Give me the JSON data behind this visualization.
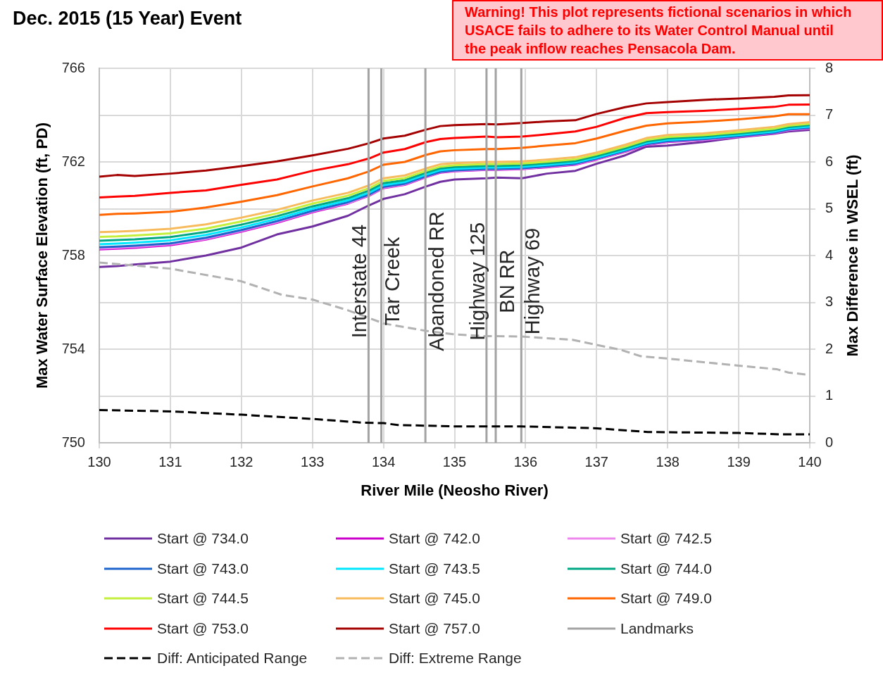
{
  "chart_data": {
    "type": "line",
    "title": "Dec. 2015 (15 Year) Event",
    "xlabel": "River Mile (Neosho River)",
    "ylabel": "Max Water Surface Elevation (ft, PD)",
    "y2label": "Max Difference in WSEL (ft)",
    "x": [
      130,
      130.25,
      130.5,
      131,
      131.5,
      132,
      132.5,
      133,
      133.5,
      133.8,
      134,
      134.3,
      134.6,
      134.8,
      135,
      135.45,
      135.6,
      135.95,
      136.3,
      136.7,
      137,
      137.4,
      137.7,
      138,
      138.5,
      139,
      139.5,
      139.7,
      140
    ],
    "xlim": [
      130,
      140
    ],
    "xticks": [
      130,
      131,
      132,
      133,
      134,
      135,
      136,
      137,
      138,
      139,
      140
    ],
    "ylim": [
      750,
      766
    ],
    "yticks": [
      750,
      754,
      758,
      762,
      766
    ],
    "y2lim": [
      0,
      8
    ],
    "y2ticks": [
      0,
      1,
      2,
      3,
      4,
      5,
      6,
      7,
      8
    ],
    "grid": true,
    "legend": "bottom",
    "marker": "none",
    "series": [
      {
        "name": "Start @ 734.0",
        "color": "#7030a0",
        "values": [
          757.51,
          757.55,
          757.62,
          757.74,
          758.0,
          758.34,
          758.9,
          759.24,
          759.7,
          760.15,
          760.42,
          760.62,
          760.95,
          761.15,
          761.25,
          761.3,
          761.33,
          761.3,
          761.5,
          761.62,
          761.92,
          762.28,
          762.65,
          762.7,
          762.85,
          763.05,
          763.2,
          763.3,
          763.37
        ]
      },
      {
        "name": "Start @ 742.0",
        "color": "#cc00cc",
        "values": [
          758.26,
          758.29,
          758.33,
          758.44,
          758.68,
          759.02,
          759.4,
          759.85,
          760.22,
          760.56,
          760.88,
          761.02,
          761.35,
          761.54,
          761.6,
          761.66,
          761.66,
          761.69,
          761.77,
          761.88,
          762.1,
          762.43,
          762.72,
          762.85,
          762.93,
          763.07,
          763.22,
          763.35,
          763.43
        ]
      },
      {
        "name": "Start @ 742.5",
        "color": "#ee88ee",
        "values": [
          758.3,
          758.33,
          758.37,
          758.48,
          758.71,
          759.05,
          759.43,
          759.88,
          760.24,
          760.58,
          760.9,
          761.04,
          761.37,
          761.56,
          761.62,
          761.68,
          761.68,
          761.71,
          761.79,
          761.9,
          762.12,
          762.45,
          762.74,
          762.87,
          762.94,
          763.08,
          763.23,
          763.36,
          763.44
        ]
      },
      {
        "name": "Start @ 743.0",
        "color": "#1f66cc",
        "values": [
          758.35,
          758.38,
          758.42,
          758.52,
          758.76,
          759.09,
          759.47,
          759.91,
          760.28,
          760.61,
          760.93,
          761.07,
          761.39,
          761.58,
          761.64,
          761.7,
          761.7,
          761.73,
          761.81,
          761.92,
          762.14,
          762.47,
          762.76,
          762.89,
          762.97,
          763.1,
          763.25,
          763.38,
          763.46
        ]
      },
      {
        "name": "Start @ 743.5",
        "color": "#00e8ff",
        "values": [
          758.48,
          758.51,
          758.55,
          758.65,
          758.88,
          759.2,
          759.57,
          760.0,
          760.36,
          760.69,
          761.01,
          761.14,
          761.46,
          761.65,
          761.71,
          761.76,
          761.76,
          761.79,
          761.87,
          761.98,
          762.19,
          762.52,
          762.81,
          762.94,
          763.02,
          763.15,
          763.3,
          763.43,
          763.51
        ]
      },
      {
        "name": "Start @ 744.0",
        "color": "#00a884",
        "values": [
          758.63,
          758.66,
          758.69,
          758.79,
          759.01,
          759.32,
          759.68,
          760.1,
          760.45,
          760.78,
          761.09,
          761.22,
          761.54,
          761.72,
          761.78,
          761.83,
          761.83,
          761.86,
          761.94,
          762.04,
          762.25,
          762.58,
          762.87,
          763.0,
          763.08,
          763.21,
          763.36,
          763.49,
          763.57
        ]
      },
      {
        "name": "Start @ 744.5",
        "color": "#c4ef3c",
        "values": [
          758.8,
          758.82,
          758.86,
          758.95,
          759.15,
          759.46,
          759.8,
          760.22,
          760.56,
          760.88,
          761.19,
          761.31,
          761.62,
          761.8,
          761.86,
          761.91,
          761.91,
          761.93,
          762.01,
          762.11,
          762.32,
          762.65,
          762.94,
          763.07,
          763.14,
          763.27,
          763.42,
          763.55,
          763.63
        ]
      },
      {
        "name": "Start @ 745.0",
        "color": "#f7bb5e",
        "values": [
          759.0,
          759.02,
          759.05,
          759.14,
          759.33,
          759.62,
          759.95,
          760.35,
          760.68,
          761.0,
          761.3,
          761.42,
          761.72,
          761.9,
          761.95,
          762.0,
          762.0,
          762.02,
          762.1,
          762.2,
          762.4,
          762.73,
          763.02,
          763.15,
          763.22,
          763.35,
          763.5,
          763.62,
          763.7
        ]
      },
      {
        "name": "Start @ 749.0",
        "color": "#ff6600",
        "values": [
          759.74,
          759.78,
          759.8,
          759.87,
          760.05,
          760.3,
          760.58,
          760.95,
          761.3,
          761.6,
          761.88,
          762.0,
          762.3,
          762.45,
          762.5,
          762.55,
          762.55,
          762.6,
          762.7,
          762.8,
          763.0,
          763.33,
          763.55,
          763.65,
          763.72,
          763.82,
          763.95,
          764.04,
          764.04
        ]
      },
      {
        "name": "Start @ 753.0",
        "color": "#ff0000",
        "values": [
          760.48,
          760.52,
          760.55,
          760.68,
          760.78,
          761.02,
          761.25,
          761.62,
          761.9,
          762.15,
          762.4,
          762.55,
          762.85,
          762.98,
          763.02,
          763.08,
          763.05,
          763.08,
          763.18,
          763.3,
          763.5,
          763.88,
          764.08,
          764.13,
          764.18,
          764.26,
          764.35,
          764.44,
          764.45
        ]
      },
      {
        "name": "Start @ 757.0",
        "color": "#a50000",
        "values": [
          761.37,
          761.44,
          761.4,
          761.5,
          761.63,
          761.82,
          762.02,
          762.28,
          762.56,
          762.8,
          763.0,
          763.12,
          763.38,
          763.53,
          763.57,
          763.62,
          763.6,
          763.66,
          763.73,
          763.78,
          764.05,
          764.34,
          764.5,
          764.56,
          764.65,
          764.71,
          764.78,
          764.84,
          764.85
        ]
      },
      {
        "name": "Landmarks",
        "color": "#a3a3a3",
        "x": [
          133.79,
          133.79
        ],
        "values": [
          750,
          766
        ]
      },
      {
        "color": "#a3a3a3",
        "x": [
          133.97,
          133.97
        ],
        "values": [
          750,
          766
        ]
      },
      {
        "color": "#a3a3a3",
        "x": [
          134.59,
          134.59
        ],
        "values": [
          750,
          766
        ]
      },
      {
        "color": "#a3a3a3",
        "x": [
          135.45,
          135.45
        ],
        "values": [
          750,
          766
        ]
      },
      {
        "color": "#a3a3a3",
        "x": [
          135.58,
          135.58
        ],
        "values": [
          750,
          766
        ]
      },
      {
        "color": "#a3a3a3",
        "x": [
          135.94,
          135.94
        ],
        "values": [
          750,
          766
        ]
      },
      {
        "name": "Diff: Anticipated Range",
        "color": "#000000",
        "axis": "y2",
        "line_style": "dashed",
        "x": [
          130,
          131,
          132,
          133,
          133.7,
          134,
          134.2,
          135,
          135.4,
          135.93,
          137,
          137.72,
          139,
          139.58,
          140
        ],
        "values": [
          0.7,
          0.67,
          0.6,
          0.51,
          0.43,
          0.42,
          0.38,
          0.35,
          0.35,
          0.35,
          0.31,
          0.23,
          0.21,
          0.18,
          0.18
        ]
      },
      {
        "name": "Diff: Extreme Range",
        "color": "#b2b2b2",
        "axis": "y2",
        "line_style": "dashed",
        "x": [
          130,
          131,
          132,
          132.57,
          133,
          133.5,
          133.79,
          134,
          134.6,
          134.98,
          135.41,
          135.93,
          136.66,
          137,
          137.33,
          137.62,
          137.99,
          138.98,
          139.54,
          139.7,
          140
        ],
        "values": [
          3.85,
          3.72,
          3.45,
          3.16,
          3.06,
          2.83,
          2.67,
          2.55,
          2.39,
          2.32,
          2.28,
          2.27,
          2.2,
          2.09,
          1.99,
          1.85,
          1.8,
          1.65,
          1.57,
          1.5,
          1.45
        ]
      }
    ],
    "annotations": [
      "Warning! This plot represents fictional scenarios in which USACE fails to adhere to its Water Control Manual until the peak inflow reaches Pensacola Dam.",
      {
        "text": "Interstate 44",
        "x": 133.79,
        "y": 756.9
      },
      {
        "text": "Tar Creek",
        "x": 133.97,
        "y": 756.9
      },
      {
        "text": "Abandoned RR",
        "x": 134.59,
        "y": 756.9
      },
      {
        "text": "Highway 125",
        "x": 135.45,
        "y": 756.9
      },
      {
        "text": "BN RR",
        "x": 135.58,
        "y": 756.9
      },
      {
        "text": "Highway 69",
        "x": 135.94,
        "y": 756.9
      }
    ]
  }
}
